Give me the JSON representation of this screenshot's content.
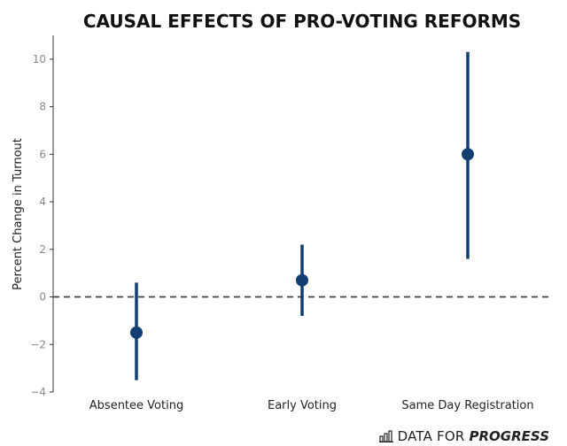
{
  "chart_data": {
    "type": "errorbar",
    "title": "CAUSAL EFFECTS OF PRO-VOTING REFORMS",
    "ylabel": "Percent Change in Turnout",
    "xlabel": "",
    "ylim": [
      -4,
      11
    ],
    "yticks": [
      -4,
      -2,
      0,
      2,
      4,
      6,
      8,
      10
    ],
    "ytick_labels": [
      "−4",
      "−2",
      "0",
      "2",
      "4",
      "6",
      "8",
      "10"
    ],
    "reference_line": 0,
    "categories": [
      "Absentee Voting",
      "Early Voting",
      "Same Day Registration"
    ],
    "points": [
      {
        "estimate": -1.5,
        "lower": -3.5,
        "upper": 0.6
      },
      {
        "estimate": 0.7,
        "lower": -0.8,
        "upper": 2.2
      },
      {
        "estimate": 6.0,
        "lower": 1.6,
        "upper": 10.3
      }
    ],
    "color": "#133e72",
    "grid": false
  },
  "brand": {
    "icon": "bar-chart-icon",
    "text_regular": "DATA FOR",
    "text_bold": "PROGRESS"
  }
}
